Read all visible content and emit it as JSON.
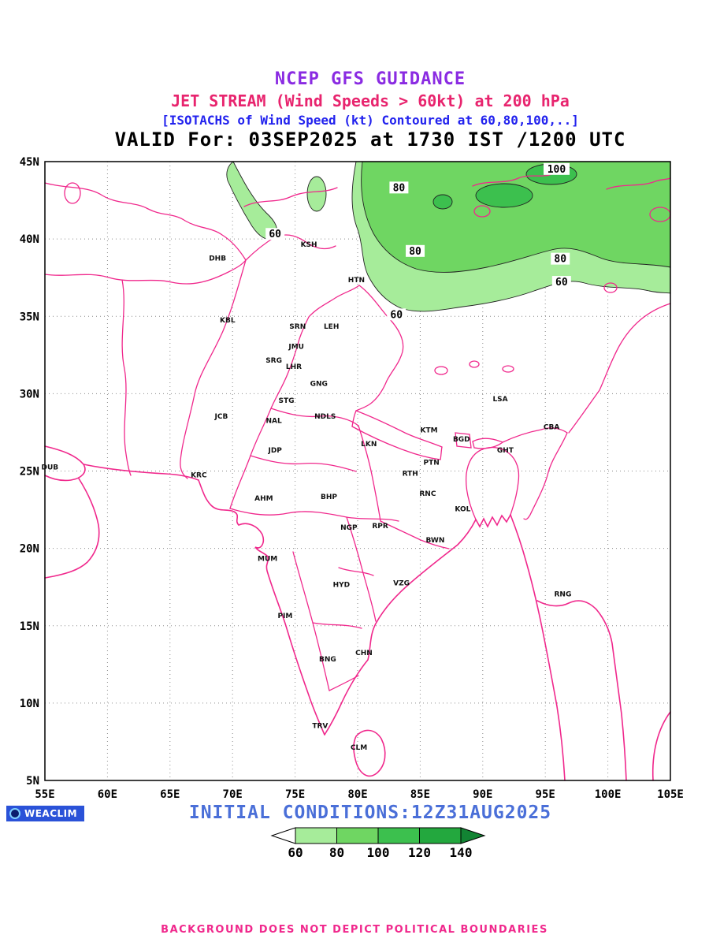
{
  "header": {
    "line1": "NCEP GFS GUIDANCE",
    "line2": "JET STREAM (Wind Speeds > 60kt) at 200 hPa",
    "line3": "[ISOTACHS of Wind Speed (kt) Contoured at 60,80,100,..]",
    "line4": "VALID For: 03SEP2025 at 1730 IST /1200 UTC"
  },
  "footer": {
    "logo_text": "WEACLIM",
    "initial_conditions": "INITIAL CONDITIONS:12Z31AUG2025",
    "disclaimer": "BACKGROUND DOES NOT DEPICT POLITICAL BOUNDARIES"
  },
  "colors": {
    "title_purple": "#8a2be2",
    "title_pink": "#e8246e",
    "title_blue": "#2222ee",
    "footer_blue": "#4a6fd8",
    "boundary_pink": "#f0288c",
    "logo_bg": "#2a52d8"
  },
  "legend": {
    "values": [
      "60",
      "80",
      "100",
      "120",
      "140"
    ],
    "colors": [
      "#ffffff",
      "#a6ec9a",
      "#6fd662",
      "#3cc04e",
      "#23a83e",
      "#128433"
    ]
  },
  "map": {
    "lat_ticks": [
      {
        "label": "45N",
        "lat": 45
      },
      {
        "label": "40N",
        "lat": 40
      },
      {
        "label": "35N",
        "lat": 35
      },
      {
        "label": "30N",
        "lat": 30
      },
      {
        "label": "25N",
        "lat": 25
      },
      {
        "label": "20N",
        "lat": 20
      },
      {
        "label": "15N",
        "lat": 15
      },
      {
        "label": "10N",
        "lat": 10
      },
      {
        "label": "5N",
        "lat": 5
      }
    ],
    "lon_ticks": [
      {
        "label": "55E",
        "lon": 55
      },
      {
        "label": "60E",
        "lon": 60
      },
      {
        "label": "65E",
        "lon": 65
      },
      {
        "label": "70E",
        "lon": 70
      },
      {
        "label": "75E",
        "lon": 75
      },
      {
        "label": "80E",
        "lon": 80
      },
      {
        "label": "85E",
        "lon": 85
      },
      {
        "label": "90E",
        "lon": 90
      },
      {
        "label": "95E",
        "lon": 95
      },
      {
        "label": "100E",
        "lon": 100
      },
      {
        "label": "105E",
        "lon": 105
      }
    ],
    "contour_labels": [
      {
        "text": "60",
        "lon": 73.4,
        "lat": 40.3
      },
      {
        "text": "80",
        "lon": 83.3,
        "lat": 43.3
      },
      {
        "text": "100",
        "lon": 95.9,
        "lat": 44.5
      },
      {
        "text": "80",
        "lon": 84.6,
        "lat": 39.2
      },
      {
        "text": "80",
        "lon": 96.2,
        "lat": 38.7
      },
      {
        "text": "60",
        "lon": 96.3,
        "lat": 37.2
      },
      {
        "text": "60",
        "lon": 83.1,
        "lat": 35.1
      }
    ],
    "cities": [
      {
        "code": "DHB",
        "lon": 68.8,
        "lat": 38.6
      },
      {
        "code": "KSH",
        "lon": 76.1,
        "lat": 39.5
      },
      {
        "code": "HTN",
        "lon": 79.9,
        "lat": 37.2
      },
      {
        "code": "KBL",
        "lon": 69.6,
        "lat": 34.6
      },
      {
        "code": "SRN",
        "lon": 75.2,
        "lat": 34.2
      },
      {
        "code": "LEH",
        "lon": 77.9,
        "lat": 34.2
      },
      {
        "code": "JMU",
        "lon": 75.1,
        "lat": 32.9
      },
      {
        "code": "SRG",
        "lon": 73.3,
        "lat": 32.0
      },
      {
        "code": "LHR",
        "lon": 74.9,
        "lat": 31.6
      },
      {
        "code": "GNG",
        "lon": 76.9,
        "lat": 30.5
      },
      {
        "code": "STG",
        "lon": 74.3,
        "lat": 29.4
      },
      {
        "code": "NDLS",
        "lon": 77.4,
        "lat": 28.4
      },
      {
        "code": "JCB",
        "lon": 69.1,
        "lat": 28.4
      },
      {
        "code": "NAL",
        "lon": 73.3,
        "lat": 28.1
      },
      {
        "code": "KTM",
        "lon": 85.7,
        "lat": 27.5
      },
      {
        "code": "LSA",
        "lon": 91.4,
        "lat": 29.5
      },
      {
        "code": "CBA",
        "lon": 95.5,
        "lat": 27.7
      },
      {
        "code": "BGD",
        "lon": 88.3,
        "lat": 26.9
      },
      {
        "code": "GHT",
        "lon": 91.8,
        "lat": 26.2
      },
      {
        "code": "JDP",
        "lon": 73.4,
        "lat": 26.2
      },
      {
        "code": "LKN",
        "lon": 80.9,
        "lat": 26.6
      },
      {
        "code": "PTN",
        "lon": 85.9,
        "lat": 25.4
      },
      {
        "code": "DUB",
        "lon": 55.4,
        "lat": 25.1
      },
      {
        "code": "KRC",
        "lon": 67.3,
        "lat": 24.6
      },
      {
        "code": "RTH",
        "lon": 84.2,
        "lat": 24.7
      },
      {
        "code": "AHM",
        "lon": 72.5,
        "lat": 23.1
      },
      {
        "code": "BHP",
        "lon": 77.7,
        "lat": 23.2
      },
      {
        "code": "RNC",
        "lon": 85.6,
        "lat": 23.4
      },
      {
        "code": "KOL",
        "lon": 88.4,
        "lat": 22.4
      },
      {
        "code": "NGP",
        "lon": 79.3,
        "lat": 21.2
      },
      {
        "code": "RPR",
        "lon": 81.8,
        "lat": 21.3
      },
      {
        "code": "BWN",
        "lon": 86.2,
        "lat": 20.4
      },
      {
        "code": "MUM",
        "lon": 72.8,
        "lat": 19.2
      },
      {
        "code": "HYD",
        "lon": 78.7,
        "lat": 17.5
      },
      {
        "code": "VZG",
        "lon": 83.5,
        "lat": 17.6
      },
      {
        "code": "RNG",
        "lon": 96.4,
        "lat": 16.9
      },
      {
        "code": "PIM",
        "lon": 74.2,
        "lat": 15.5
      },
      {
        "code": "BNG",
        "lon": 77.6,
        "lat": 12.7
      },
      {
        "code": "CHN",
        "lon": 80.5,
        "lat": 13.1
      },
      {
        "code": "TRV",
        "lon": 77.0,
        "lat": 8.4
      },
      {
        "code": "CLM",
        "lon": 80.1,
        "lat": 7.0
      }
    ]
  },
  "chart_data": {
    "type": "heatmap",
    "subtype": "filled-isotach-contour-map",
    "variable": "200 hPa wind speed (kt)",
    "contour_levels": [
      60,
      80,
      100,
      120,
      140
    ],
    "lon_range": [
      55,
      105
    ],
    "lat_range": [
      5,
      45
    ],
    "shaded_region": "jet stream band along northern edge of domain, roughly 35N-45N from 70E to 105E, peak >100 kt near 95E/44N"
  }
}
